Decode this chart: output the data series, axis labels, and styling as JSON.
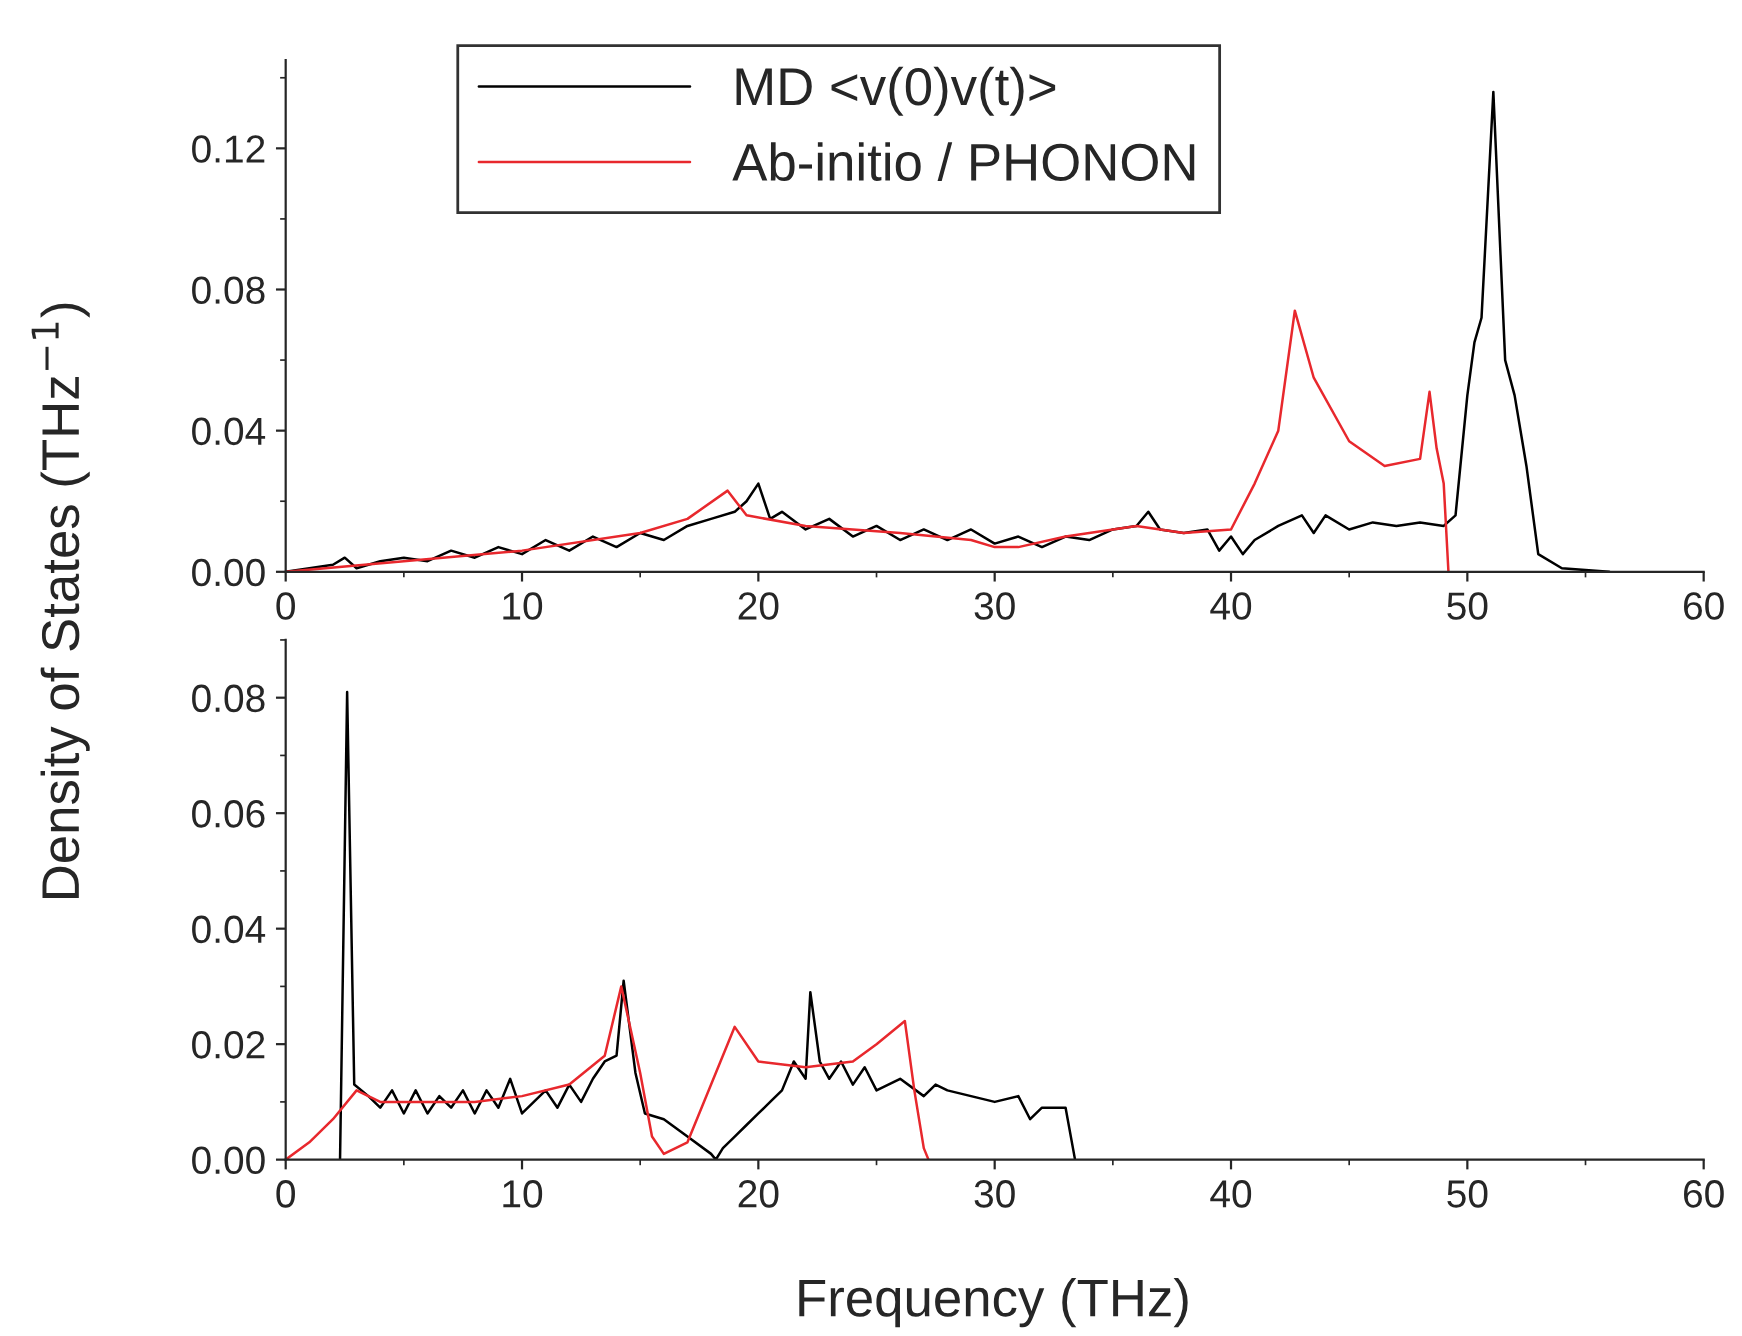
{
  "chart_data": [
    {
      "type": "line",
      "ylabel": "Density of States (THz$^{−1}$)",
      "xlim": [
        0,
        60
      ],
      "xticks": [
        0,
        10,
        20,
        30,
        40,
        50,
        60
      ],
      "ylim": [
        0,
        0.145
      ],
      "yticks": [
        {
          "value": 0,
          "label": "0.00"
        },
        {
          "value": 0.04,
          "label": "0.04"
        },
        {
          "value": 0.08,
          "label": "0.08"
        },
        {
          "value": 0.12,
          "label": "0.12"
        }
      ],
      "legend": "top",
      "grid": false,
      "marker": "none",
      "line_style": "solid",
      "series": [
        {
          "name": "MD <v(0)v(t)>",
          "color": "#000000",
          "x": [
            0,
            1,
            2,
            2.5,
            3,
            4,
            5,
            6,
            7,
            8,
            9,
            10,
            11,
            12,
            13,
            14,
            15,
            16,
            17,
            18,
            19,
            19.5,
            20,
            20.5,
            21,
            22,
            23,
            24,
            25,
            26,
            27,
            28,
            29,
            30,
            31,
            32,
            33,
            34,
            35,
            36,
            36.5,
            37,
            38,
            39,
            39.5,
            40,
            40.5,
            41,
            42,
            43,
            43.5,
            44,
            45,
            46,
            47,
            48,
            49,
            49.5,
            50,
            50.3,
            50.6,
            51.1,
            51.6,
            52,
            52.5,
            53,
            54,
            56
          ],
          "values": [
            0,
            0.001,
            0.002,
            0.004,
            0.001,
            0.003,
            0.004,
            0.003,
            0.006,
            0.004,
            0.007,
            0.005,
            0.009,
            0.006,
            0.01,
            0.007,
            0.011,
            0.009,
            0.013,
            0.015,
            0.017,
            0.02,
            0.025,
            0.015,
            0.017,
            0.012,
            0.015,
            0.01,
            0.013,
            0.009,
            0.012,
            0.009,
            0.012,
            0.008,
            0.01,
            0.007,
            0.01,
            0.009,
            0.012,
            0.013,
            0.017,
            0.012,
            0.011,
            0.012,
            0.006,
            0.01,
            0.005,
            0.009,
            0.013,
            0.016,
            0.011,
            0.016,
            0.012,
            0.014,
            0.013,
            0.014,
            0.013,
            0.016,
            0.05,
            0.065,
            0.072,
            0.136,
            0.06,
            0.05,
            0.03,
            0.005,
            0.001,
            0
          ]
        },
        {
          "name": "Ab-initio / PHONON",
          "color": "#e8282d",
          "x": [
            0,
            5,
            10,
            15,
            17,
            18.7,
            19.5,
            22,
            26,
            29,
            30,
            31,
            33,
            36,
            37,
            38,
            40,
            41,
            42,
            42.7,
            43.5,
            45,
            46.5,
            48,
            48.4,
            48.7,
            49,
            49.2
          ],
          "values": [
            0,
            0.003,
            0.006,
            0.011,
            0.015,
            0.023,
            0.016,
            0.013,
            0.011,
            0.009,
            0.007,
            0.007,
            0.01,
            0.013,
            0.012,
            0.011,
            0.012,
            0.025,
            0.04,
            0.074,
            0.055,
            0.037,
            0.03,
            0.032,
            0.051,
            0.035,
            0.025,
            0
          ]
        }
      ]
    },
    {
      "type": "line",
      "xlabel": "Frequency (THz)",
      "xlim": [
        0,
        60
      ],
      "xticks": [
        0,
        10,
        20,
        30,
        40,
        50,
        60
      ],
      "ylim": [
        0,
        0.09
      ],
      "yticks": [
        {
          "value": 0,
          "label": "0.00"
        },
        {
          "value": 0.02,
          "label": "0.02"
        },
        {
          "value": 0.04,
          "label": "0.04"
        },
        {
          "value": 0.06,
          "label": "0.06"
        },
        {
          "value": 0.08,
          "label": "0.08"
        }
      ],
      "grid": false,
      "marker": "none",
      "line_style": "solid",
      "series": [
        {
          "color": "#000000",
          "x": [
            2.3,
            2.6,
            2.9,
            3.5,
            4,
            4.5,
            5,
            5.5,
            6,
            6.5,
            7,
            7.5,
            8,
            8.5,
            9,
            9.5,
            10,
            10.5,
            11,
            11.5,
            12,
            12.5,
            13,
            13.5,
            14,
            14.3,
            14.8,
            15.2,
            16,
            17,
            18,
            18.2,
            18.5,
            19,
            19.5,
            20,
            20.5,
            21,
            21.5,
            22,
            22.2,
            22.6,
            23,
            23.5,
            24,
            24.5,
            25,
            26,
            27,
            27.5,
            28,
            29,
            30,
            31,
            31.5,
            32,
            33,
            33.4
          ],
          "values": [
            0,
            0.081,
            0.013,
            0.011,
            0.009,
            0.012,
            0.008,
            0.012,
            0.008,
            0.011,
            0.009,
            0.012,
            0.008,
            0.012,
            0.009,
            0.014,
            0.008,
            0.01,
            0.012,
            0.009,
            0.013,
            0.01,
            0.014,
            0.017,
            0.018,
            0.031,
            0.015,
            0.008,
            0.007,
            0.004,
            0.001,
            0,
            0.002,
            0.004,
            0.006,
            0.008,
            0.01,
            0.012,
            0.017,
            0.014,
            0.029,
            0.017,
            0.014,
            0.017,
            0.013,
            0.016,
            0.012,
            0.014,
            0.011,
            0.013,
            0.012,
            0.011,
            0.01,
            0.011,
            0.007,
            0.009,
            0.009,
            0
          ]
        },
        {
          "color": "#e8282d",
          "x": [
            0,
            1,
            2,
            3,
            4,
            6,
            8,
            10,
            12,
            13.5,
            14.2,
            15,
            15.5,
            16,
            17,
            18,
            19,
            20,
            22,
            24,
            25,
            26.2,
            26.6,
            27,
            27.2
          ],
          "values": [
            0,
            0.003,
            0.007,
            0.012,
            0.01,
            0.01,
            0.01,
            0.011,
            0.013,
            0.018,
            0.03,
            0.015,
            0.004,
            0.001,
            0.003,
            0.013,
            0.023,
            0.017,
            0.016,
            0.017,
            0.02,
            0.024,
            0.012,
            0.002,
            0
          ]
        }
      ]
    }
  ]
}
